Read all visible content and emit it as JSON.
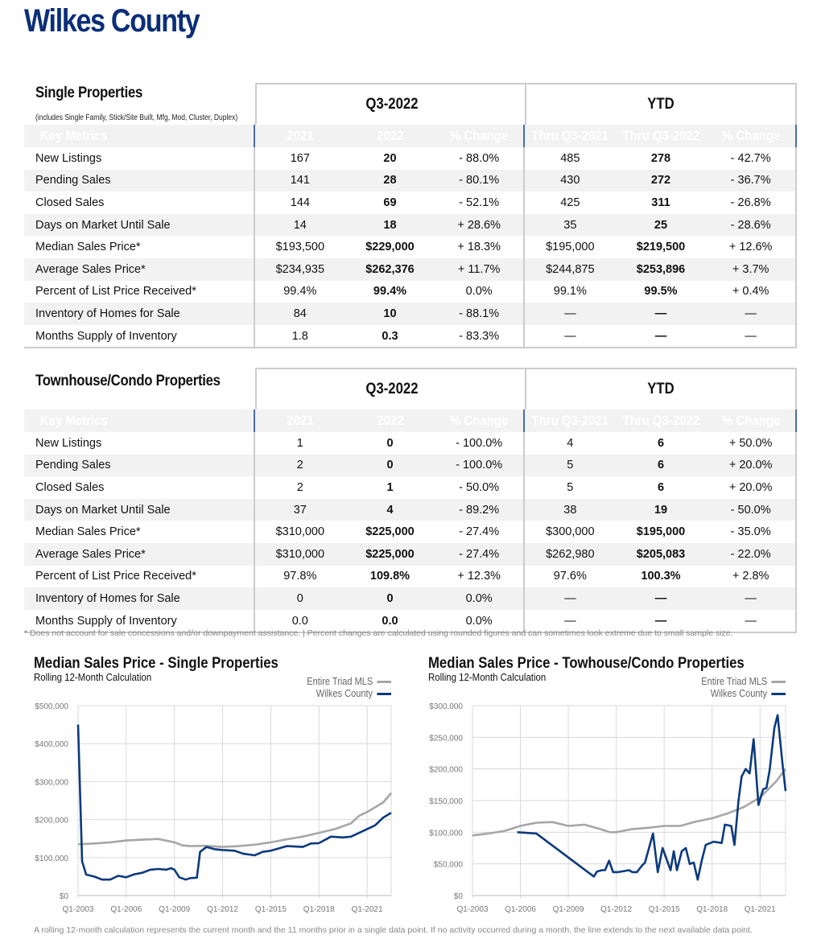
{
  "title": "Wilkes County",
  "tables": [
    {
      "name": "Single Properties",
      "subtitle": "(includes Single Family, Stick/Site Built, Mfg, Mod, Cluster, Duplex)",
      "group1": "Q3-2022",
      "group2": "YTD",
      "headers": [
        "Key Metrics",
        "2021",
        "2022",
        "% Change",
        "Thru Q3-2021",
        "Thru Q3-2022",
        "% Change"
      ],
      "rows": [
        [
          "New Listings",
          "167",
          "20",
          "- 88.0%",
          "485",
          "278",
          "- 42.7%"
        ],
        [
          "Pending Sales",
          "141",
          "28",
          "- 80.1%",
          "430",
          "272",
          "- 36.7%"
        ],
        [
          "Closed Sales",
          "144",
          "69",
          "- 52.1%",
          "425",
          "311",
          "- 26.8%"
        ],
        [
          "Days on Market Until Sale",
          "14",
          "18",
          "+ 28.6%",
          "35",
          "25",
          "- 28.6%"
        ],
        [
          "Median Sales Price*",
          "$193,500",
          "$229,000",
          "+ 18.3%",
          "$195,000",
          "$219,500",
          "+ 12.6%"
        ],
        [
          "Average Sales Price*",
          "$234,935",
          "$262,376",
          "+ 11.7%",
          "$244,875",
          "$253,896",
          "+ 3.7%"
        ],
        [
          "Percent of List Price Received*",
          "99.4%",
          "99.4%",
          "0.0%",
          "99.1%",
          "99.5%",
          "+ 0.4%"
        ],
        [
          "Inventory of Homes for Sale",
          "84",
          "10",
          "- 88.1%",
          "—",
          "—",
          "—"
        ],
        [
          "Months Supply of Inventory",
          "1.8",
          "0.3",
          "- 83.3%",
          "—",
          "—",
          "—"
        ]
      ]
    },
    {
      "name": "Townhouse/Condo Properties",
      "subtitle": "",
      "group1": "Q3-2022",
      "group2": "YTD",
      "headers": [
        "Key Metrics",
        "2021",
        "2022",
        "% Change",
        "Thru Q3-2021",
        "Thru Q3-2022",
        "% Change"
      ],
      "rows": [
        [
          "New Listings",
          "1",
          "0",
          "- 100.0%",
          "4",
          "6",
          "+ 50.0%"
        ],
        [
          "Pending Sales",
          "2",
          "0",
          "- 100.0%",
          "5",
          "6",
          "+ 20.0%"
        ],
        [
          "Closed Sales",
          "2",
          "1",
          "- 50.0%",
          "5",
          "6",
          "+ 20.0%"
        ],
        [
          "Days on Market Until Sale",
          "37",
          "4",
          "- 89.2%",
          "38",
          "19",
          "- 50.0%"
        ],
        [
          "Median Sales Price*",
          "$310,000",
          "$225,000",
          "- 27.4%",
          "$300,000",
          "$195,000",
          "- 35.0%"
        ],
        [
          "Average Sales Price*",
          "$310,000",
          "$225,000",
          "- 27.4%",
          "$262,980",
          "$205,083",
          "- 22.0%"
        ],
        [
          "Percent of List Price Received*",
          "97.8%",
          "109.8%",
          "+ 12.3%",
          "97.6%",
          "100.3%",
          "+ 2.8%"
        ],
        [
          "Inventory of Homes for Sale",
          "0",
          "0",
          "0.0%",
          "—",
          "—",
          "—"
        ],
        [
          "Months Supply of Inventory",
          "0.0",
          "0.0",
          "0.0%",
          "—",
          "—",
          "—"
        ]
      ]
    }
  ],
  "footnote": "* Does not account for sale concessions and/or downpayment assistance. | Percent changes are calculated using rounded figures and can sometimes look extreme due to small sample size.",
  "bottom_note": "A rolling 12-month calculation represents the current month and the 11 months prior in a single data point. If no activity occurred during a month, the line extends to the next available data point.",
  "colors": {
    "navy": "#0b2e78",
    "triad": "#a6a6a6",
    "wilkes": "#0b3a7e"
  },
  "chart_data": [
    {
      "type": "line",
      "title": "Median Sales Price - Single Properties",
      "subtitle": "Rolling 12-Month Calculation",
      "xlim": [
        2003,
        2022.5
      ],
      "ylim": [
        0,
        500000
      ],
      "yticks": [
        0,
        100000,
        200000,
        300000,
        400000,
        500000
      ],
      "ytick_labels": [
        "$0",
        "$100,000",
        "$200,000",
        "$300,000",
        "$400,000",
        "$500,000"
      ],
      "xticks": [
        2003,
        2006,
        2009,
        2012,
        2015,
        2018,
        2021
      ],
      "xtick_labels": [
        "Q1-2003",
        "Q1-2006",
        "Q1-2009",
        "Q1-2012",
        "Q1-2015",
        "Q1-2018",
        "Q1-2021"
      ],
      "legend": "top-right",
      "series": [
        {
          "name": "Entire Triad MLS",
          "color": "#a6a6a6",
          "points": [
            [
              2003,
              135000
            ],
            [
              2004,
              137000
            ],
            [
              2005,
              140000
            ],
            [
              2006,
              145000
            ],
            [
              2007,
              147000
            ],
            [
              2008,
              149000
            ],
            [
              2009,
              140000
            ],
            [
              2009.5,
              132000
            ],
            [
              2010,
              130000
            ],
            [
              2011,
              131000
            ],
            [
              2012,
              128000
            ],
            [
              2013,
              130000
            ],
            [
              2014,
              134000
            ],
            [
              2015,
              140000
            ],
            [
              2016,
              148000
            ],
            [
              2017,
              155000
            ],
            [
              2018,
              165000
            ],
            [
              2019,
              175000
            ],
            [
              2020,
              190000
            ],
            [
              2020.5,
              210000
            ],
            [
              2021,
              220000
            ],
            [
              2022,
              245000
            ],
            [
              2022.5,
              270000
            ]
          ]
        },
        {
          "name": "Wilkes County",
          "color": "#0b3a7e",
          "points": [
            [
              2003,
              450000
            ],
            [
              2003.25,
              90000
            ],
            [
              2003.5,
              55000
            ],
            [
              2004,
              50000
            ],
            [
              2004.5,
              42000
            ],
            [
              2005,
              42000
            ],
            [
              2005.5,
              52000
            ],
            [
              2006,
              48000
            ],
            [
              2006.5,
              56000
            ],
            [
              2007,
              60000
            ],
            [
              2007.5,
              68000
            ],
            [
              2008,
              70000
            ],
            [
              2008.5,
              68000
            ],
            [
              2008.8,
              72000
            ],
            [
              2009,
              68000
            ],
            [
              2009.3,
              48000
            ],
            [
              2009.7,
              42000
            ],
            [
              2010,
              46000
            ],
            [
              2010.4,
              47000
            ],
            [
              2010.6,
              115000
            ],
            [
              2011,
              128000
            ],
            [
              2011.5,
              122000
            ],
            [
              2012,
              120000
            ],
            [
              2012.75,
              118000
            ],
            [
              2013.3,
              110000
            ],
            [
              2014,
              106000
            ],
            [
              2014.5,
              115000
            ],
            [
              2015,
              118000
            ],
            [
              2016,
              130000
            ],
            [
              2017,
              128000
            ],
            [
              2017.5,
              137000
            ],
            [
              2018,
              138000
            ],
            [
              2018.75,
              155000
            ],
            [
              2019.5,
              153000
            ],
            [
              2020,
              155000
            ],
            [
              2021,
              175000
            ],
            [
              2021.5,
              185000
            ],
            [
              2022,
              205000
            ],
            [
              2022.5,
              218000
            ]
          ]
        }
      ]
    },
    {
      "type": "line",
      "title": "Median Sales Price - Towhouse/Condo Properties",
      "subtitle": "Rolling 12-Month Calculation",
      "xlim": [
        2003,
        2022.6
      ],
      "ylim": [
        0,
        300000
      ],
      "yticks": [
        0,
        50000,
        100000,
        150000,
        200000,
        250000,
        300000
      ],
      "ytick_labels": [
        "$0",
        "$50,000",
        "$100,000",
        "$150,000",
        "$200,000",
        "$250,000",
        "$300,000"
      ],
      "xticks": [
        2003,
        2006,
        2009,
        2012,
        2015,
        2018,
        2021
      ],
      "xtick_labels": [
        "Q1-2003",
        "Q1-2006",
        "Q1-2009",
        "Q1-2012",
        "Q1-2015",
        "Q1-2018",
        "Q1-2021"
      ],
      "legend": "top-right",
      "series": [
        {
          "name": "Entire Triad MLS",
          "color": "#a6a6a6",
          "points": [
            [
              2003,
              95000
            ],
            [
              2004,
              98000
            ],
            [
              2005,
              102000
            ],
            [
              2006,
              110000
            ],
            [
              2007,
              115000
            ],
            [
              2008,
              116000
            ],
            [
              2009,
              110000
            ],
            [
              2010,
              112000
            ],
            [
              2011,
              105000
            ],
            [
              2011.6,
              100000
            ],
            [
              2012,
              100000
            ],
            [
              2013,
              105000
            ],
            [
              2014,
              107000
            ],
            [
              2015,
              110000
            ],
            [
              2016,
              110000
            ],
            [
              2017,
              117000
            ],
            [
              2018,
              122000
            ],
            [
              2019,
              130000
            ],
            [
              2020,
              140000
            ],
            [
              2021,
              155000
            ],
            [
              2022,
              180000
            ],
            [
              2022.6,
              200000
            ]
          ]
        },
        {
          "name": "Wilkes County",
          "color": "#0b3a7e",
          "points": [
            [
              2005.8,
              100000
            ],
            [
              2007,
              98000
            ],
            [
              2010.6,
              30000
            ],
            [
              2010.8,
              38000
            ],
            [
              2011.1,
              40000
            ],
            [
              2011.3,
              40000
            ],
            [
              2011.55,
              55000
            ],
            [
              2011.8,
              37000
            ],
            [
              2012.1,
              37000
            ],
            [
              2012.35,
              38000
            ],
            [
              2012.8,
              40000
            ],
            [
              2013,
              37000
            ],
            [
              2013.3,
              37000
            ],
            [
              2013.6,
              47000
            ],
            [
              2013.8,
              52000
            ],
            [
              2014.3,
              98000
            ],
            [
              2014.6,
              37000
            ],
            [
              2014.9,
              75000
            ],
            [
              2015.4,
              40000
            ],
            [
              2015.6,
              70000
            ],
            [
              2015.8,
              40000
            ],
            [
              2016.1,
              70000
            ],
            [
              2016.35,
              75000
            ],
            [
              2016.6,
              50000
            ],
            [
              2016.85,
              52000
            ],
            [
              2017.1,
              25000
            ],
            [
              2017.35,
              55000
            ],
            [
              2017.6,
              80000
            ],
            [
              2018.1,
              85000
            ],
            [
              2018.6,
              83000
            ],
            [
              2018.8,
              112000
            ],
            [
              2019.2,
              110000
            ],
            [
              2019.4,
              80000
            ],
            [
              2019.65,
              150000
            ],
            [
              2019.85,
              188000
            ],
            [
              2020.1,
              200000
            ],
            [
              2020.35,
              193000
            ],
            [
              2020.6,
              247000
            ],
            [
              2020.9,
              143000
            ],
            [
              2021.2,
              168000
            ],
            [
              2021.4,
              170000
            ],
            [
              2021.6,
              198000
            ],
            [
              2021.9,
              265000
            ],
            [
              2022.1,
              285000
            ],
            [
              2022.4,
              210000
            ],
            [
              2022.6,
              165000
            ]
          ]
        }
      ]
    }
  ]
}
